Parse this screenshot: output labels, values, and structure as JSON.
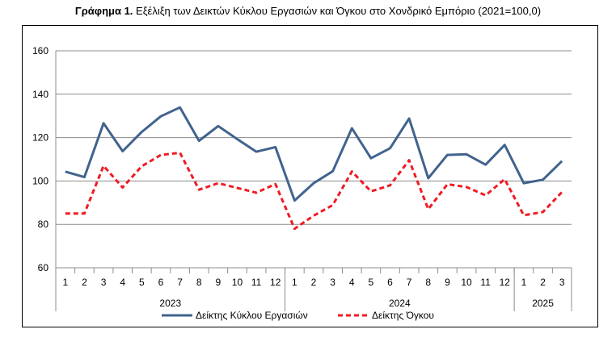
{
  "title": {
    "prefix": "Γράφημα 1.",
    "text": " Εξέλιξη των Δεικτών Κύκλου Εργασιών και Όγκου στο Χονδρικό Εμπόριο (2021=100,0)"
  },
  "chart_data": {
    "type": "line",
    "title": "Γράφημα 1. Εξέλιξη των Δεικτών Κύκλου Εργασιών και Όγκου στο Χονδρικό Εμπόριο (2021=100,0)",
    "xlabel": "",
    "ylabel": "",
    "ylim": [
      60,
      160
    ],
    "yticks": [
      60,
      80,
      100,
      120,
      140,
      160
    ],
    "grid": true,
    "legend_position": "bottom",
    "categories": [
      "1",
      "2",
      "3",
      "4",
      "5",
      "6",
      "7",
      "8",
      "9",
      "10",
      "11",
      "12",
      "1",
      "2",
      "3",
      "4",
      "5",
      "6",
      "7",
      "8",
      "9",
      "10",
      "11",
      "12",
      "1",
      "2",
      "3"
    ],
    "year_groups": [
      {
        "label": "2023",
        "count": 12
      },
      {
        "label": "2024",
        "count": 12
      },
      {
        "label": "2025",
        "count": 3
      }
    ],
    "series": [
      {
        "name": "Δείκτης Κύκλου Εργασιών",
        "color": "#41638D",
        "style": "solid",
        "values": [
          104.3,
          101.8,
          126.6,
          113.7,
          122.6,
          129.8,
          133.9,
          118.5,
          125.3,
          119.3,
          113.5,
          115.6,
          91.0,
          99.0,
          104.5,
          124.3,
          110.5,
          115.1,
          128.8,
          101.3,
          112.0,
          112.3,
          107.5,
          116.6,
          99.0,
          100.6,
          109.2
        ]
      },
      {
        "name": "Δείκτης Όγκου",
        "color": "#EE1C25",
        "style": "dashed",
        "values": [
          85.0,
          85.0,
          107.0,
          97.0,
          106.8,
          112.0,
          113.0,
          96.0,
          99.0,
          96.8,
          94.6,
          98.6,
          78.0,
          84.0,
          88.9,
          104.4,
          95.2,
          98.0,
          109.6,
          87.0,
          98.5,
          97.2,
          93.4,
          100.8,
          84.2,
          85.7,
          94.9
        ]
      }
    ]
  }
}
